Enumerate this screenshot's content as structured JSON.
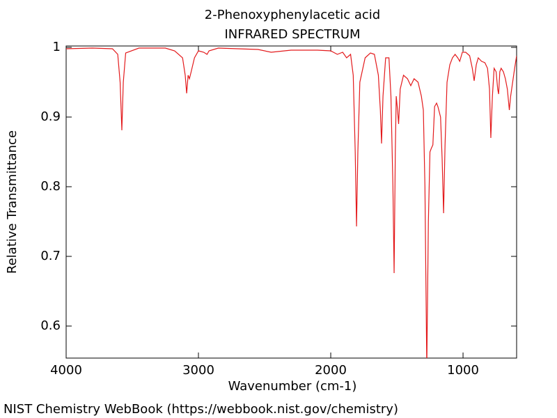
{
  "chart_data": {
    "type": "line",
    "title": "2-Phenoxyphenylacetic acid",
    "subtitle": "INFRARED SPECTRUM",
    "x_label": "Wavenumber (cm-1)",
    "y_label": "Relative Transmittance",
    "source": "NIST Chemistry WebBook (https://webbook.nist.gov/chemistry)",
    "xlim": [
      4000,
      595
    ],
    "ylim": [
      0.554,
      1.002
    ],
    "xticks": [
      4000,
      3000,
      2000,
      1000
    ],
    "yticks": [
      0.6,
      0.7,
      0.8,
      0.9,
      1
    ],
    "color": "#e31a1c",
    "x": [
      4000,
      3800,
      3650,
      3610,
      3592,
      3579,
      3568,
      3550,
      3450,
      3250,
      3180,
      3120,
      3100,
      3089,
      3078,
      3068,
      3055,
      3030,
      3000,
      2960,
      2935,
      2920,
      2850,
      2700,
      2550,
      2450,
      2300,
      2100,
      2000,
      1950,
      1910,
      1880,
      1850,
      1830,
      1815,
      1805,
      1795,
      1780,
      1740,
      1700,
      1670,
      1640,
      1625,
      1616,
      1605,
      1585,
      1560,
      1545,
      1530,
      1521,
      1512,
      1505,
      1495,
      1487,
      1475,
      1450,
      1420,
      1395,
      1370,
      1340,
      1315,
      1300,
      1288,
      1274,
      1262,
      1250,
      1240,
      1228,
      1215,
      1200,
      1190,
      1170,
      1158,
      1147,
      1136,
      1121,
      1100,
      1080,
      1060,
      1040,
      1025,
      1005,
      980,
      950,
      930,
      916,
      900,
      885,
      860,
      835,
      815,
      800,
      790,
      778,
      765,
      750,
      738,
      731,
      722,
      712,
      695,
      680,
      665,
      650,
      640,
      625,
      610,
      595
    ],
    "values": [
      0.998,
      0.999,
      0.998,
      0.99,
      0.95,
      0.881,
      0.95,
      0.992,
      0.999,
      0.999,
      0.995,
      0.985,
      0.96,
      0.934,
      0.96,
      0.955,
      0.965,
      0.985,
      0.995,
      0.993,
      0.99,
      0.995,
      0.999,
      0.998,
      0.997,
      0.993,
      0.996,
      0.996,
      0.995,
      0.99,
      0.993,
      0.985,
      0.99,
      0.96,
      0.85,
      0.743,
      0.85,
      0.95,
      0.985,
      0.992,
      0.99,
      0.96,
      0.91,
      0.862,
      0.93,
      0.985,
      0.985,
      0.93,
      0.8,
      0.676,
      0.85,
      0.93,
      0.91,
      0.89,
      0.94,
      0.96,
      0.955,
      0.945,
      0.955,
      0.95,
      0.93,
      0.91,
      0.8,
      0.54,
      0.75,
      0.85,
      0.855,
      0.86,
      0.915,
      0.92,
      0.915,
      0.9,
      0.84,
      0.762,
      0.86,
      0.95,
      0.975,
      0.985,
      0.99,
      0.985,
      0.98,
      0.993,
      0.993,
      0.988,
      0.97,
      0.952,
      0.975,
      0.985,
      0.98,
      0.978,
      0.97,
      0.94,
      0.87,
      0.93,
      0.97,
      0.965,
      0.94,
      0.933,
      0.965,
      0.97,
      0.965,
      0.955,
      0.94,
      0.91,
      0.93,
      0.95,
      0.97,
      0.988
    ]
  }
}
